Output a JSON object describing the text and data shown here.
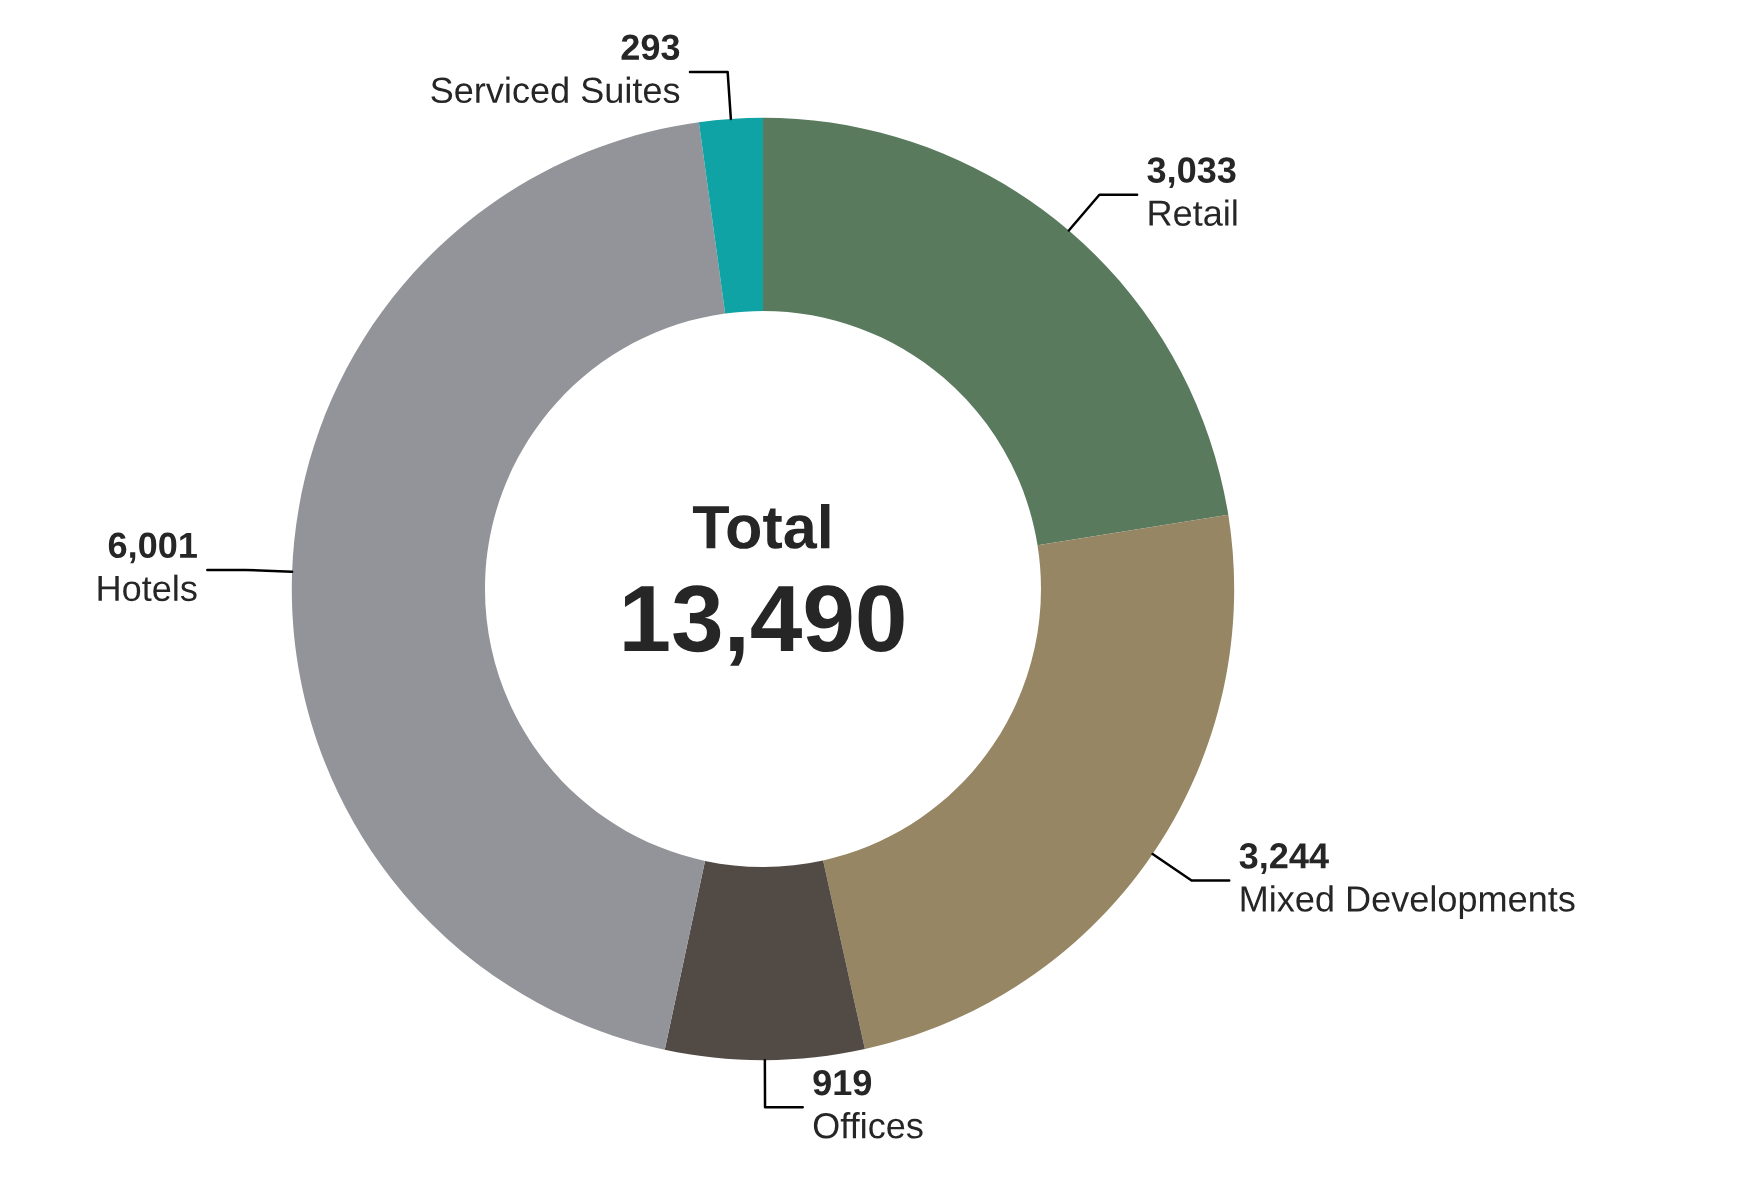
{
  "chart_data": {
    "type": "donut",
    "categories": [
      "Retail",
      "Mixed Developments",
      "Offices",
      "Hotels",
      "Serviced Suites"
    ],
    "values": [
      3033,
      3244,
      919,
      6001,
      293
    ],
    "colors": [
      "#5a7a5e",
      "#968663",
      "#524a45",
      "#939499",
      "#0fa3a6"
    ],
    "value_labels": [
      "3,033",
      "3,244",
      "919",
      "6,001",
      "293"
    ],
    "annotations": [
      "Total",
      "13,490"
    ]
  }
}
